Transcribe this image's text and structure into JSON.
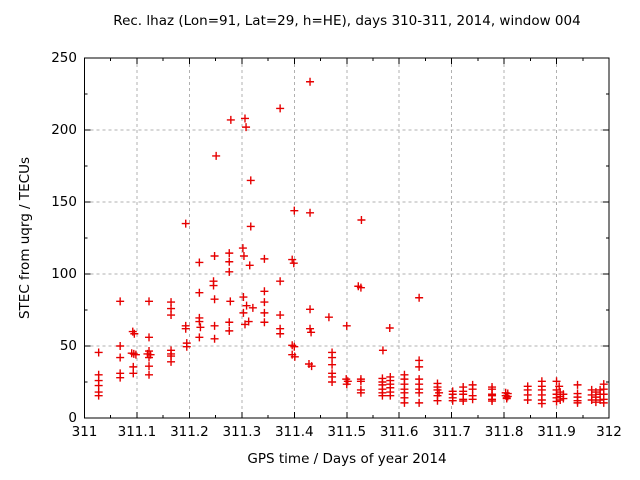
{
  "chart_data": {
    "type": "scatter",
    "title": "Rec. lhaz (Lon=91, Lat=29, h=HE), days 310-311, 2014, window 004",
    "xlabel": "GPS time / Days of year 2014",
    "ylabel": "STEC from uqrg / TECUs",
    "xlim": [
      311,
      312
    ],
    "ylim": [
      0,
      250
    ],
    "xticks": [
      311,
      311.1,
      311.2,
      311.3,
      311.4,
      311.5,
      311.6,
      311.7,
      311.8,
      311.9,
      312
    ],
    "xtick_labels": [
      "311",
      "311.1",
      "311.2",
      "311.3",
      "311.4",
      "311.5",
      "311.6",
      "311.7",
      "311.8",
      "311.9",
      "312"
    ],
    "yticks": [
      0,
      50,
      100,
      150,
      200,
      250
    ],
    "ytick_labels": [
      "0",
      "50",
      "100",
      "150",
      "200",
      "250"
    ],
    "x_minor_step": 0.05,
    "y_minor_step": 25,
    "grid": true,
    "legend_position": "none",
    "marker": "plus",
    "marker_color": "#e60000",
    "grid_color": "#b0b0b0",
    "frame_color": "#000000",
    "series": [
      {
        "name": "STEC from uqrg",
        "points": [
          [
            311.027,
            45.5
          ],
          [
            311.027,
            30
          ],
          [
            311.027,
            26
          ],
          [
            311.027,
            22.5
          ],
          [
            311.027,
            18
          ],
          [
            311.027,
            15.5
          ],
          [
            311.068,
            81
          ],
          [
            311.068,
            50
          ],
          [
            311.068,
            42
          ],
          [
            311.068,
            31
          ],
          [
            311.068,
            28
          ],
          [
            311.092,
            60
          ],
          [
            311.095,
            58.5
          ],
          [
            311.09,
            45
          ],
          [
            311.094,
            44.5
          ],
          [
            311.098,
            44
          ],
          [
            311.093,
            35.5
          ],
          [
            311.093,
            31
          ],
          [
            311.123,
            81
          ],
          [
            311.123,
            56
          ],
          [
            311.123,
            46.5
          ],
          [
            311.12,
            44.5
          ],
          [
            311.126,
            44
          ],
          [
            311.123,
            42
          ],
          [
            311.123,
            36
          ],
          [
            311.123,
            30
          ],
          [
            311.165,
            80.5
          ],
          [
            311.165,
            76
          ],
          [
            311.165,
            71.5
          ],
          [
            311.165,
            47
          ],
          [
            311.165,
            44.5
          ],
          [
            311.165,
            43
          ],
          [
            311.165,
            39
          ],
          [
            311.193,
            135
          ],
          [
            311.193,
            64
          ],
          [
            311.193,
            62
          ],
          [
            311.195,
            52
          ],
          [
            311.195,
            49.5
          ],
          [
            311.219,
            108
          ],
          [
            311.219,
            87
          ],
          [
            311.219,
            69.5
          ],
          [
            311.219,
            67
          ],
          [
            311.221,
            63
          ],
          [
            311.219,
            56
          ],
          [
            311.251,
            182
          ],
          [
            311.248,
            112.5
          ],
          [
            311.246,
            95
          ],
          [
            311.246,
            92
          ],
          [
            311.248,
            82.5
          ],
          [
            311.248,
            64
          ],
          [
            311.248,
            55
          ],
          [
            311.279,
            207
          ],
          [
            311.276,
            114.5
          ],
          [
            311.276,
            108.5
          ],
          [
            311.276,
            101.5
          ],
          [
            311.278,
            81
          ],
          [
            311.276,
            66.5
          ],
          [
            311.276,
            60.5
          ],
          [
            311.306,
            208
          ],
          [
            311.308,
            202
          ],
          [
            311.317,
            165
          ],
          [
            311.317,
            133
          ],
          [
            311.302,
            118
          ],
          [
            311.304,
            112.5
          ],
          [
            311.315,
            106
          ],
          [
            311.303,
            84
          ],
          [
            311.309,
            78
          ],
          [
            311.321,
            76.5
          ],
          [
            311.303,
            73
          ],
          [
            311.313,
            67
          ],
          [
            311.306,
            65
          ],
          [
            311.343,
            110.5
          ],
          [
            311.343,
            88
          ],
          [
            311.343,
            80.5
          ],
          [
            311.343,
            73
          ],
          [
            311.343,
            66.5
          ],
          [
            311.373,
            215
          ],
          [
            311.373,
            95
          ],
          [
            311.373,
            71.5
          ],
          [
            311.373,
            62
          ],
          [
            311.373,
            58.5
          ],
          [
            311.4,
            144
          ],
          [
            311.396,
            110
          ],
          [
            311.399,
            107.5
          ],
          [
            311.396,
            50.5
          ],
          [
            311.4,
            49.5
          ],
          [
            311.396,
            44
          ],
          [
            311.401,
            42.5
          ],
          [
            311.43,
            233.5
          ],
          [
            311.43,
            142.5
          ],
          [
            311.43,
            75.5
          ],
          [
            311.43,
            62
          ],
          [
            311.432,
            59.5
          ],
          [
            311.428,
            37.5
          ],
          [
            311.433,
            36
          ],
          [
            311.466,
            70
          ],
          [
            311.472,
            45.5
          ],
          [
            311.472,
            42
          ],
          [
            311.472,
            37
          ],
          [
            311.472,
            31
          ],
          [
            311.472,
            28.5
          ],
          [
            311.472,
            25
          ],
          [
            311.5,
            64
          ],
          [
            311.499,
            27
          ],
          [
            311.502,
            25.5
          ],
          [
            311.5,
            23.5
          ],
          [
            311.528,
            137.5
          ],
          [
            311.522,
            91.5
          ],
          [
            311.527,
            90.5
          ],
          [
            311.527,
            27
          ],
          [
            311.527,
            25.5
          ],
          [
            311.527,
            19.5
          ],
          [
            311.527,
            17.5
          ],
          [
            311.582,
            62.5
          ],
          [
            311.569,
            47
          ],
          [
            311.568,
            27.5
          ],
          [
            311.568,
            25
          ],
          [
            311.568,
            23
          ],
          [
            311.568,
            20
          ],
          [
            311.568,
            17.5
          ],
          [
            311.568,
            15.5
          ],
          [
            311.583,
            28.5
          ],
          [
            311.583,
            26
          ],
          [
            311.583,
            23.5
          ],
          [
            311.583,
            21
          ],
          [
            311.583,
            18
          ],
          [
            311.583,
            15.5
          ],
          [
            311.61,
            30
          ],
          [
            311.61,
            27
          ],
          [
            311.61,
            23.5
          ],
          [
            311.61,
            20
          ],
          [
            311.61,
            17.5
          ],
          [
            311.61,
            14
          ],
          [
            311.61,
            10.5
          ],
          [
            311.638,
            83.5
          ],
          [
            311.638,
            40
          ],
          [
            311.638,
            35.5
          ],
          [
            311.638,
            27
          ],
          [
            311.638,
            23.5
          ],
          [
            311.638,
            20
          ],
          [
            311.638,
            17.5
          ],
          [
            311.638,
            10.5
          ],
          [
            311.673,
            24
          ],
          [
            311.673,
            21.5
          ],
          [
            311.673,
            19.5
          ],
          [
            311.676,
            17.5
          ],
          [
            311.673,
            15.5
          ],
          [
            311.673,
            12
          ],
          [
            311.702,
            18.5
          ],
          [
            311.702,
            16.5
          ],
          [
            311.702,
            14
          ],
          [
            311.702,
            12
          ],
          [
            311.722,
            21.5
          ],
          [
            311.722,
            18.5
          ],
          [
            311.722,
            16.5
          ],
          [
            311.722,
            13
          ],
          [
            311.722,
            11.8
          ],
          [
            311.74,
            23
          ],
          [
            311.74,
            20
          ],
          [
            311.74,
            15.5
          ],
          [
            311.74,
            13
          ],
          [
            311.777,
            21.5
          ],
          [
            311.777,
            20
          ],
          [
            311.777,
            16.5
          ],
          [
            311.777,
            15.5
          ],
          [
            311.777,
            13
          ],
          [
            311.777,
            11.8
          ],
          [
            311.803,
            17.5
          ],
          [
            311.807,
            17
          ],
          [
            311.803,
            15.5
          ],
          [
            311.807,
            15
          ],
          [
            311.805,
            14
          ],
          [
            311.805,
            13.5
          ],
          [
            311.845,
            22
          ],
          [
            311.845,
            19.5
          ],
          [
            311.845,
            16
          ],
          [
            311.845,
            12.5
          ],
          [
            311.872,
            25.5
          ],
          [
            311.872,
            22
          ],
          [
            311.872,
            19.5
          ],
          [
            311.872,
            16
          ],
          [
            311.872,
            12.5
          ],
          [
            311.872,
            10
          ],
          [
            311.9,
            25.5
          ],
          [
            311.9,
            19.5
          ],
          [
            311.9,
            16.5
          ],
          [
            311.9,
            14
          ],
          [
            311.9,
            11.5
          ],
          [
            311.905,
            22
          ],
          [
            311.907,
            18
          ],
          [
            311.907,
            15
          ],
          [
            311.907,
            12.5
          ],
          [
            311.913,
            16.5
          ],
          [
            311.913,
            13.5
          ],
          [
            311.94,
            23
          ],
          [
            311.94,
            17
          ],
          [
            311.94,
            14.5
          ],
          [
            311.94,
            12
          ],
          [
            311.94,
            10.5
          ],
          [
            311.967,
            19.5
          ],
          [
            311.967,
            16
          ],
          [
            311.967,
            12.5
          ],
          [
            311.975,
            18
          ],
          [
            311.975,
            14.5
          ],
          [
            311.975,
            11
          ],
          [
            311.983,
            19.5
          ],
          [
            311.983,
            16.5
          ],
          [
            311.983,
            12.5
          ],
          [
            311.99,
            23.5
          ],
          [
            311.99,
            20
          ],
          [
            311.99,
            16.5
          ],
          [
            311.99,
            13
          ],
          [
            311.99,
            10.5
          ]
        ]
      }
    ]
  }
}
